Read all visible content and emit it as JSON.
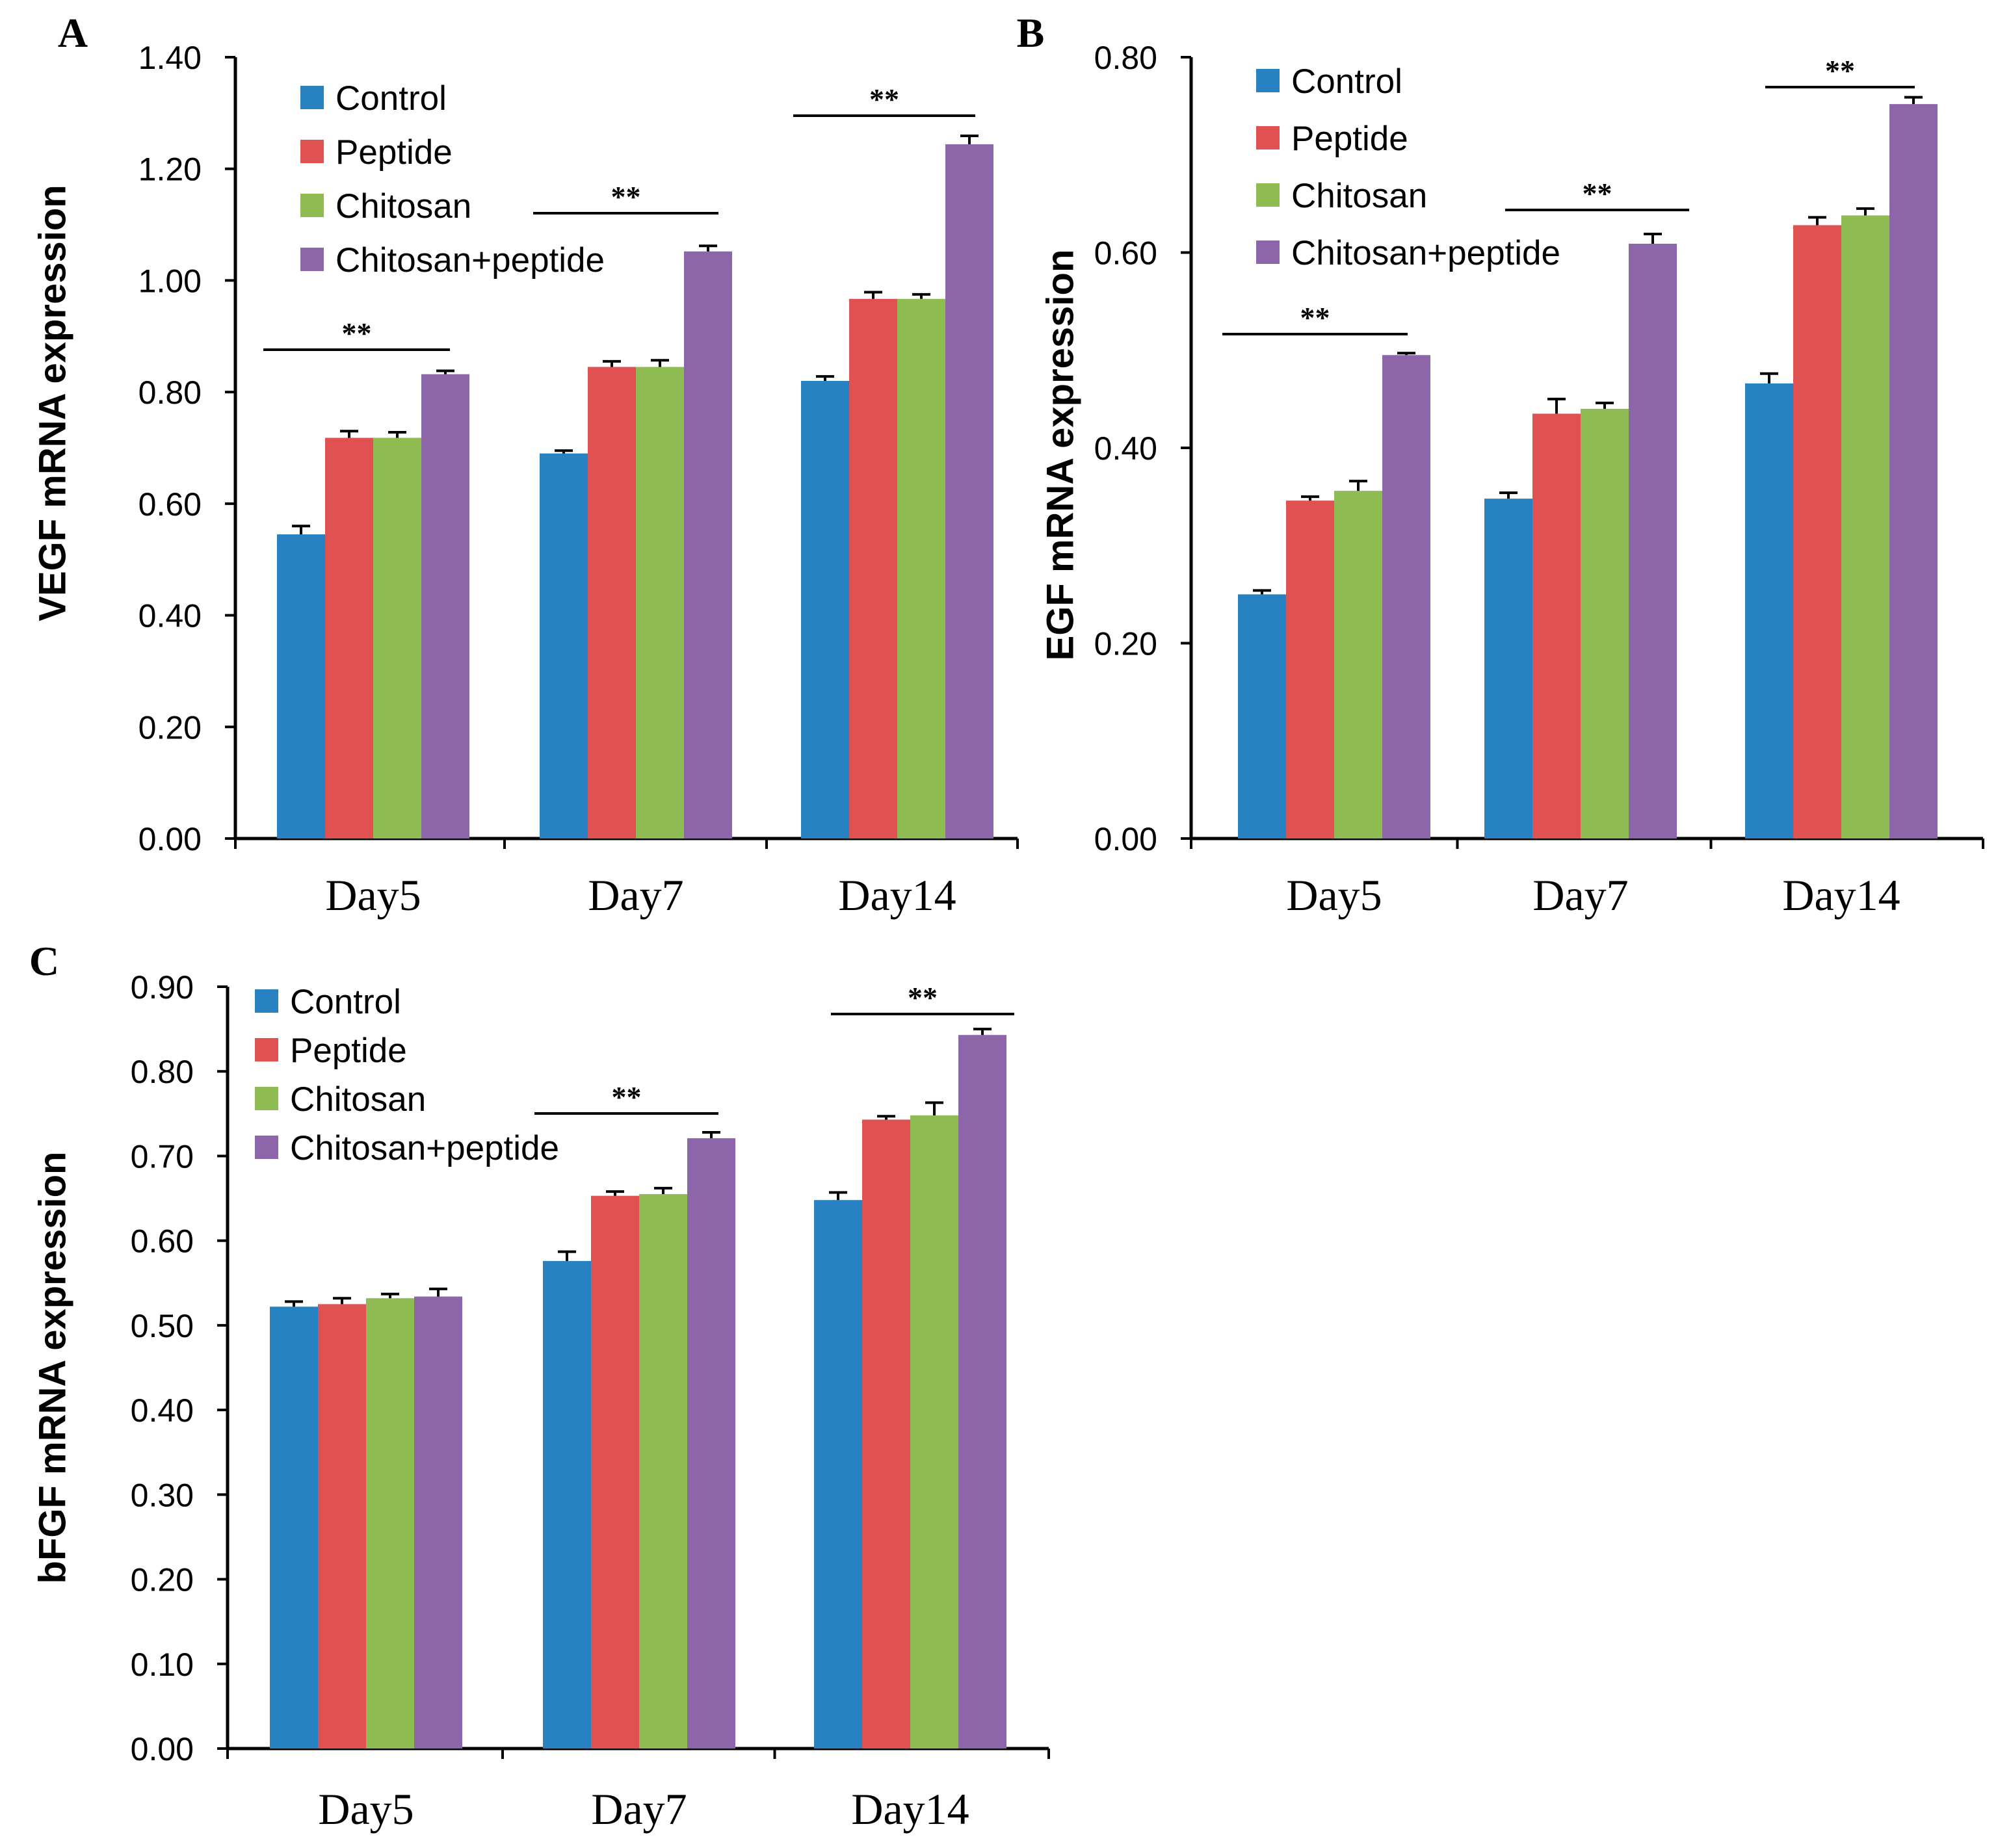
{
  "series_names": [
    "Control",
    "Peptide",
    "Chitosan",
    "Chitosan+peptide"
  ],
  "colors": {
    "Control": "#2882c2",
    "Peptide": "#e05252",
    "Chitosan": "#8fbc52",
    "Chitosan+peptide": "#8c66a8",
    "axis": "#000000"
  },
  "chart_data": [
    {
      "panel": "A",
      "type": "bar",
      "title": "",
      "xlabel": "",
      "ylabel": "VEGF mRNA expression",
      "categories": [
        "Day5",
        "Day7",
        "Day14"
      ],
      "ylim": [
        0,
        1.4
      ],
      "yticks": [
        "0.00",
        "0.20",
        "0.40",
        "0.60",
        "0.80",
        "1.00",
        "1.20",
        "1.40"
      ],
      "series": [
        {
          "name": "Control",
          "values": [
            0.545,
            0.69,
            0.82
          ],
          "errors": [
            0.015,
            0.005,
            0.008
          ]
        },
        {
          "name": "Peptide",
          "values": [
            0.718,
            0.845,
            0.967
          ],
          "errors": [
            0.012,
            0.01,
            0.012
          ]
        },
        {
          "name": "Chitosan",
          "values": [
            0.718,
            0.845,
            0.967
          ],
          "errors": [
            0.01,
            0.012,
            0.008
          ]
        },
        {
          "name": "Chitosan+peptide",
          "values": [
            0.832,
            1.052,
            1.244
          ],
          "errors": [
            0.006,
            0.01,
            0.015
          ]
        }
      ],
      "annotations": [
        {
          "text": "**",
          "group": 0
        },
        {
          "text": "**",
          "group": 1
        },
        {
          "text": "**",
          "group": 2
        }
      ],
      "legend": "top-left"
    },
    {
      "panel": "B",
      "type": "bar",
      "title": "",
      "xlabel": "",
      "ylabel": "EGF mRNA expression",
      "categories": [
        "Day5",
        "Day7",
        "Day14"
      ],
      "ylim": [
        0,
        0.8
      ],
      "yticks": [
        "0.00",
        "0.20",
        "0.40",
        "0.60",
        "0.80"
      ],
      "series": [
        {
          "name": "Control",
          "values": [
            0.25,
            0.348,
            0.466
          ],
          "errors": [
            0.004,
            0.006,
            0.01
          ]
        },
        {
          "name": "Peptide",
          "values": [
            0.346,
            0.435,
            0.628
          ],
          "errors": [
            0.004,
            0.015,
            0.008
          ]
        },
        {
          "name": "Chitosan",
          "values": [
            0.356,
            0.44,
            0.638
          ],
          "errors": [
            0.01,
            0.006,
            0.007
          ]
        },
        {
          "name": "Chitosan+peptide",
          "values": [
            0.495,
            0.609,
            0.752
          ],
          "errors": [
            0.002,
            0.01,
            0.007
          ]
        }
      ],
      "annotations": [
        {
          "text": "**",
          "group": 0
        },
        {
          "text": "**",
          "group": 1
        },
        {
          "text": "**",
          "group": 2
        }
      ],
      "legend": "top-left"
    },
    {
      "panel": "C",
      "type": "bar",
      "title": "",
      "xlabel": "",
      "ylabel": "bFGF mRNA expression",
      "categories": [
        "Day5",
        "Day7",
        "Day14"
      ],
      "ylim": [
        0,
        0.9
      ],
      "yticks": [
        "0.00",
        "0.10",
        "0.20",
        "0.30",
        "0.40",
        "0.50",
        "0.60",
        "0.70",
        "0.80",
        "0.90"
      ],
      "series": [
        {
          "name": "Control",
          "values": [
            0.522,
            0.576,
            0.648
          ],
          "errors": [
            0.006,
            0.011,
            0.009
          ]
        },
        {
          "name": "Peptide",
          "values": [
            0.525,
            0.653,
            0.743
          ],
          "errors": [
            0.007,
            0.005,
            0.004
          ]
        },
        {
          "name": "Chitosan",
          "values": [
            0.532,
            0.655,
            0.748
          ],
          "errors": [
            0.005,
            0.007,
            0.015
          ]
        },
        {
          "name": "Chitosan+peptide",
          "values": [
            0.534,
            0.721,
            0.843
          ],
          "errors": [
            0.009,
            0.007,
            0.007
          ]
        }
      ],
      "annotations": [
        {
          "text": "**",
          "group": 1
        },
        {
          "text": "**",
          "group": 2
        }
      ],
      "legend": "top-left"
    }
  ]
}
